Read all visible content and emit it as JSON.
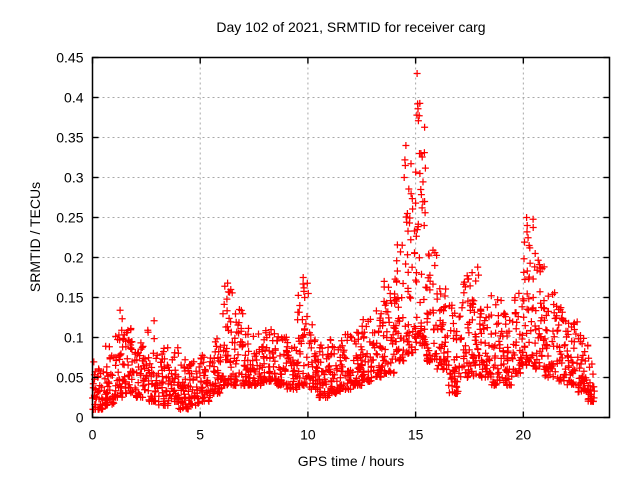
{
  "chart_data": {
    "type": "scatter",
    "title": "Day 102 of 2021, SRMTID for receiver carg",
    "xlabel": "GPS time / hours",
    "ylabel": "SRMTID / TECUs",
    "xlim": [
      0,
      24
    ],
    "ylim": [
      0,
      0.45
    ],
    "xticks": [
      {
        "v": 0,
        "label": "0"
      },
      {
        "v": 5,
        "label": "5"
      },
      {
        "v": 10,
        "label": "10"
      },
      {
        "v": 15,
        "label": "15"
      },
      {
        "v": 20,
        "label": "20"
      }
    ],
    "yticks": [
      {
        "v": 0,
        "label": "0"
      },
      {
        "v": 0.05,
        "label": "0.05"
      },
      {
        "v": 0.1,
        "label": "0.1"
      },
      {
        "v": 0.15,
        "label": "0.15"
      },
      {
        "v": 0.2,
        "label": "0.2"
      },
      {
        "v": 0.25,
        "label": "0.25"
      },
      {
        "v": 0.3,
        "label": "0.3"
      },
      {
        "v": 0.35,
        "label": "0.35"
      },
      {
        "v": 0.4,
        "label": "0.4"
      },
      {
        "v": 0.45,
        "label": "0.45"
      }
    ],
    "grid": true,
    "legend": "none",
    "marker": {
      "shape": "plus",
      "color": "#ff0000",
      "size": 7
    },
    "axis_color": "#000000",
    "grid_color": "#a8a8a8",
    "background": "#ffffff",
    "series": [
      {
        "name": "SRMTID",
        "representation": "density_bins",
        "note": "bins are [hour_start, hour_end, value_min, value_max, n_points] estimated from plot; values skew toward value_min",
        "seed": 42,
        "skew": 1.9,
        "bins": [
          [
            0.0,
            0.5,
            0.01,
            0.07,
            40
          ],
          [
            0.5,
            1.0,
            0.015,
            0.09,
            40
          ],
          [
            1.0,
            1.5,
            0.025,
            0.125,
            42
          ],
          [
            1.5,
            2.0,
            0.03,
            0.115,
            42
          ],
          [
            2.0,
            2.5,
            0.025,
            0.1,
            40
          ],
          [
            2.5,
            3.0,
            0.02,
            0.11,
            40
          ],
          [
            3.0,
            3.5,
            0.015,
            0.09,
            40
          ],
          [
            3.5,
            4.0,
            0.02,
            0.095,
            40
          ],
          [
            4.0,
            4.5,
            0.01,
            0.075,
            40
          ],
          [
            4.5,
            5.0,
            0.015,
            0.07,
            40
          ],
          [
            5.0,
            5.5,
            0.02,
            0.08,
            40
          ],
          [
            5.5,
            6.0,
            0.03,
            0.1,
            40
          ],
          [
            6.0,
            6.5,
            0.04,
            0.165,
            42
          ],
          [
            6.5,
            7.0,
            0.04,
            0.135,
            40
          ],
          [
            7.0,
            7.5,
            0.04,
            0.115,
            40
          ],
          [
            7.5,
            8.0,
            0.04,
            0.105,
            40
          ],
          [
            8.0,
            8.5,
            0.045,
            0.11,
            40
          ],
          [
            8.5,
            9.0,
            0.04,
            0.105,
            40
          ],
          [
            9.0,
            9.5,
            0.035,
            0.095,
            40
          ],
          [
            9.5,
            10.0,
            0.04,
            0.17,
            42
          ],
          [
            10.0,
            10.5,
            0.035,
            0.125,
            40
          ],
          [
            10.5,
            11.0,
            0.025,
            0.095,
            40
          ],
          [
            11.0,
            11.5,
            0.03,
            0.1,
            40
          ],
          [
            11.5,
            12.0,
            0.035,
            0.105,
            40
          ],
          [
            12.0,
            12.5,
            0.04,
            0.11,
            40
          ],
          [
            12.5,
            13.0,
            0.045,
            0.125,
            40
          ],
          [
            13.0,
            13.5,
            0.05,
            0.135,
            40
          ],
          [
            13.5,
            14.0,
            0.055,
            0.175,
            42
          ],
          [
            14.0,
            14.5,
            0.07,
            0.22,
            44
          ],
          [
            14.5,
            15.0,
            0.08,
            0.32,
            46
          ],
          [
            15.0,
            15.5,
            0.09,
            0.4,
            46
          ],
          [
            15.5,
            16.0,
            0.07,
            0.21,
            42
          ],
          [
            16.0,
            16.5,
            0.06,
            0.165,
            40
          ],
          [
            16.5,
            17.0,
            0.03,
            0.15,
            40
          ],
          [
            17.0,
            17.5,
            0.05,
            0.185,
            40
          ],
          [
            17.5,
            18.0,
            0.05,
            0.19,
            40
          ],
          [
            18.0,
            18.5,
            0.05,
            0.15,
            40
          ],
          [
            18.5,
            19.0,
            0.04,
            0.16,
            40
          ],
          [
            19.0,
            19.5,
            0.04,
            0.135,
            40
          ],
          [
            19.5,
            20.0,
            0.055,
            0.16,
            40
          ],
          [
            20.0,
            20.5,
            0.065,
            0.25,
            42
          ],
          [
            20.5,
            21.0,
            0.06,
            0.22,
            42
          ],
          [
            21.0,
            21.5,
            0.05,
            0.165,
            40
          ],
          [
            21.5,
            22.0,
            0.045,
            0.14,
            40
          ],
          [
            22.0,
            22.5,
            0.04,
            0.12,
            40
          ],
          [
            22.5,
            23.0,
            0.03,
            0.105,
            40
          ],
          [
            23.0,
            23.3,
            0.02,
            0.075,
            24
          ]
        ],
        "outliers": [
          [
            15.07,
            0.43
          ],
          [
            15.09,
            0.392
          ],
          [
            15.11,
            0.386
          ],
          [
            15.06,
            0.378
          ],
          [
            15.13,
            0.371
          ],
          [
            14.55,
            0.34
          ],
          [
            15.18,
            0.33
          ],
          [
            14.5,
            0.322
          ],
          [
            14.52,
            0.315
          ],
          [
            15.2,
            0.305
          ],
          [
            14.47,
            0.3
          ],
          [
            15.24,
            0.285
          ],
          [
            15.3,
            0.262
          ],
          [
            14.62,
            0.255
          ],
          [
            15.4,
            0.24
          ],
          [
            20.15,
            0.25
          ],
          [
            20.18,
            0.24
          ],
          [
            20.17,
            0.232
          ],
          [
            20.3,
            0.212
          ],
          [
            20.55,
            0.205
          ],
          [
            9.78,
            0.175
          ],
          [
            9.82,
            0.162
          ],
          [
            9.85,
            0.15
          ],
          [
            6.27,
            0.168
          ],
          [
            6.31,
            0.157
          ],
          [
            6.24,
            0.148
          ],
          [
            17.88,
            0.188
          ],
          [
            17.92,
            0.178
          ],
          [
            1.28,
            0.134
          ],
          [
            2.86,
            0.121
          ],
          [
            10.02,
            0.155
          ]
        ]
      }
    ]
  }
}
